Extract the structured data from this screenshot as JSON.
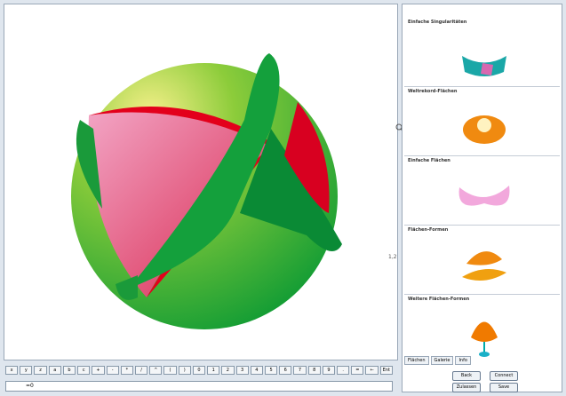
{
  "toolbar": {
    "keys": [
      "x",
      "y",
      "z",
      "a",
      "b",
      "c",
      "+",
      "-",
      "*",
      "/",
      "^",
      "(",
      ")",
      "0",
      "1",
      "2",
      "3",
      "4",
      "5",
      "6",
      "7",
      "8",
      "9",
      ".",
      "=",
      "←",
      "Ent"
    ],
    "formula": "=0",
    "zoom_value": "1,2"
  },
  "gallery": {
    "items": [
      {
        "title": "Einfache Singularitäten"
      },
      {
        "title": "Weltrekord-Flächen"
      },
      {
        "title": "Einfache Flächen"
      },
      {
        "title": "Flächen-Formen"
      },
      {
        "title": "Weitere Flächen-Formen"
      }
    ],
    "tabs": [
      "Flächen",
      "Galerie",
      "Info"
    ],
    "buttons": [
      "Back",
      "Connect",
      "Zulassen",
      "Save"
    ]
  }
}
